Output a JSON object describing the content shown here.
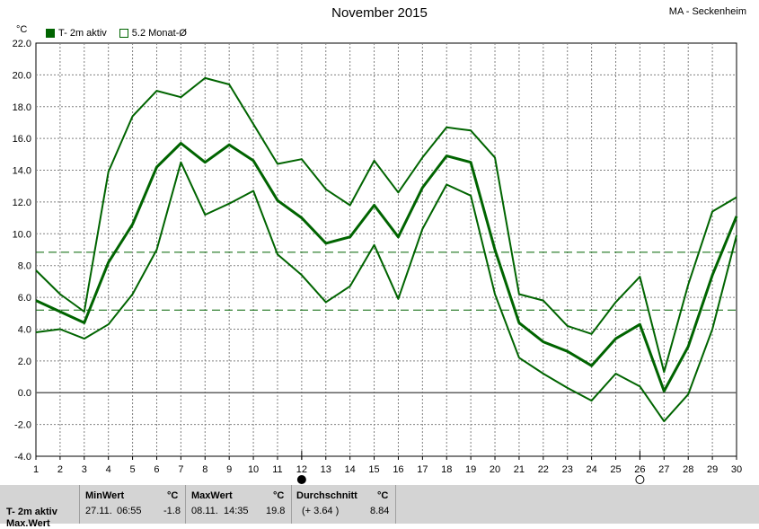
{
  "header": {
    "title": "November 2015",
    "station": "MA - Seckenheim",
    "unit": "°C"
  },
  "legend": {
    "series1": "T- 2m aktiv",
    "series2": "5.2 Monat-Ø"
  },
  "colors": {
    "series": "#006400",
    "axis": "#000000",
    "grid": "#808080",
    "panel": "#d4d4d4"
  },
  "chart_data": {
    "type": "line",
    "title": "November 2015",
    "ylabel": "°C",
    "xlim": [
      1,
      30
    ],
    "ylim": [
      -4,
      22
    ],
    "x_ticks": [
      1,
      2,
      3,
      4,
      5,
      6,
      7,
      8,
      9,
      10,
      11,
      12,
      13,
      14,
      15,
      16,
      17,
      18,
      19,
      20,
      21,
      22,
      23,
      24,
      25,
      26,
      27,
      28,
      29,
      30
    ],
    "y_ticks": [
      -4,
      -2,
      0,
      2,
      4,
      6,
      8,
      10,
      12,
      14,
      16,
      18,
      20,
      22
    ],
    "grid": true,
    "x": [
      1,
      2,
      3,
      4,
      5,
      6,
      7,
      8,
      9,
      10,
      11,
      12,
      13,
      14,
      15,
      16,
      17,
      18,
      19,
      20,
      21,
      22,
      23,
      24,
      25,
      26,
      27,
      28,
      29,
      30
    ],
    "series": [
      {
        "name": "T- 2m aktiv",
        "role": "max",
        "values": [
          7.7,
          6.2,
          5.1,
          13.9,
          17.4,
          19.0,
          18.6,
          19.8,
          19.4,
          16.9,
          14.4,
          14.7,
          12.8,
          11.8,
          14.6,
          12.6,
          14.8,
          16.7,
          16.5,
          14.8,
          6.2,
          5.8,
          4.2,
          3.7,
          5.7,
          7.3,
          1.3,
          6.8,
          11.4,
          12.3
        ]
      },
      {
        "name": "T- 2m aktiv",
        "role": "mean",
        "values": [
          5.8,
          5.1,
          4.4,
          8.2,
          10.6,
          14.2,
          15.7,
          14.5,
          15.6,
          14.6,
          12.1,
          11.0,
          9.4,
          9.8,
          11.8,
          9.8,
          12.9,
          14.9,
          14.5,
          9.0,
          4.4,
          3.2,
          2.6,
          1.7,
          3.4,
          4.3,
          0.1,
          2.9,
          7.4,
          11.1
        ]
      },
      {
        "name": "T- 2m aktiv",
        "role": "min",
        "values": [
          3.8,
          4.0,
          3.4,
          4.3,
          6.2,
          9.0,
          14.5,
          11.2,
          11.9,
          12.7,
          8.7,
          7.4,
          5.7,
          6.7,
          9.3,
          5.9,
          10.3,
          13.1,
          12.4,
          6.2,
          2.2,
          1.2,
          0.3,
          -0.5,
          1.2,
          0.4,
          -1.8,
          -0.1,
          4.0,
          9.9
        ]
      }
    ],
    "reference_lines": [
      {
        "name": "5.2 Monat-Ø",
        "value": 5.2
      },
      {
        "name": "",
        "value": 8.84
      }
    ],
    "markers": [
      {
        "day": 12,
        "symbol": "full-moon"
      },
      {
        "day": 26,
        "symbol": "new-moon"
      }
    ]
  },
  "stats": {
    "label": "T- 2m aktiv",
    "label2": "Max.Wert",
    "min": {
      "header": "MinWert",
      "unit": "°C",
      "date": "27.11.",
      "time": "06:55",
      "value": "-1.8"
    },
    "max": {
      "header": "MaxWert",
      "unit": "°C",
      "date": "08.11.",
      "time": "14:35",
      "value": "19.8"
    },
    "avg": {
      "header": "Durchschnitt",
      "unit": "°C",
      "delta": "(+ 3.64 )",
      "value": "8.84"
    }
  }
}
